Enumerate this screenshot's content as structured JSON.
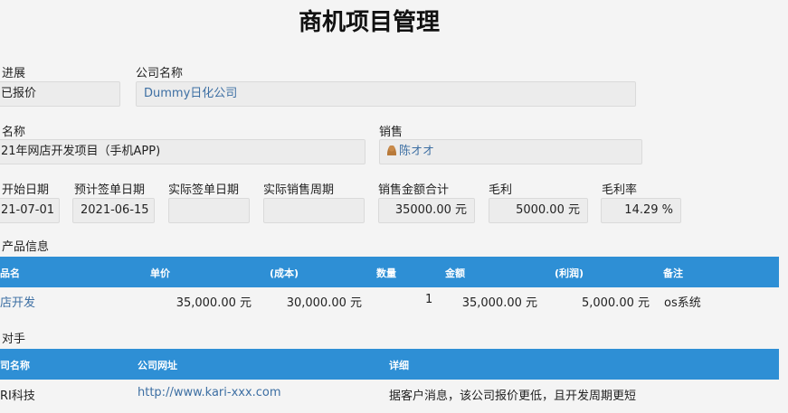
{
  "title": "商机项目管理",
  "form": {
    "progress": {
      "label": "进展",
      "value": "已报价"
    },
    "company": {
      "label": "公司名称",
      "value": "Dummy日化公司"
    },
    "name": {
      "label": "名称",
      "value": "21年网店开发项目（手机APP)"
    },
    "sales": {
      "label": "销售",
      "value": "陈オオ",
      "icon": "person-icon"
    },
    "start_date": {
      "label": "开始日期",
      "value": "21-07-01"
    },
    "expected_sign_date": {
      "label": "预计签单日期",
      "value": "2021-06-15"
    },
    "actual_sign_date": {
      "label": "实际签单日期",
      "value": ""
    },
    "actual_sales_cycle": {
      "label": "实际销售周期",
      "value": ""
    },
    "sales_total": {
      "label": "销售金额合计",
      "value": "35000.00 元"
    },
    "gross_profit": {
      "label": "毛利",
      "value": "5000.00 元"
    },
    "gross_margin": {
      "label": "毛利率",
      "value": "14.29 %"
    }
  },
  "products": {
    "section_label": "产品信息",
    "columns": [
      "品名",
      "单价",
      "(成本)",
      "数量",
      "金额",
      "(利润)",
      "备注"
    ],
    "rows": [
      [
        "店开发",
        "35,000.00 元",
        "30,000.00 元",
        "1",
        "35,000.00 元",
        "5,000.00 元",
        "os系统"
      ]
    ]
  },
  "competitors": {
    "section_label": "对手",
    "columns": [
      "司名称",
      "公司网址",
      "详细"
    ],
    "rows": [
      [
        "RI科技",
        "http://www.kari-xxx.com",
        "据客户消息，该公司报价更低，且开发周期更短"
      ]
    ]
  },
  "colors": {
    "header_blue": "#2e8fd5",
    "link": "#3d6fa3",
    "background": "#f4f4f4"
  }
}
